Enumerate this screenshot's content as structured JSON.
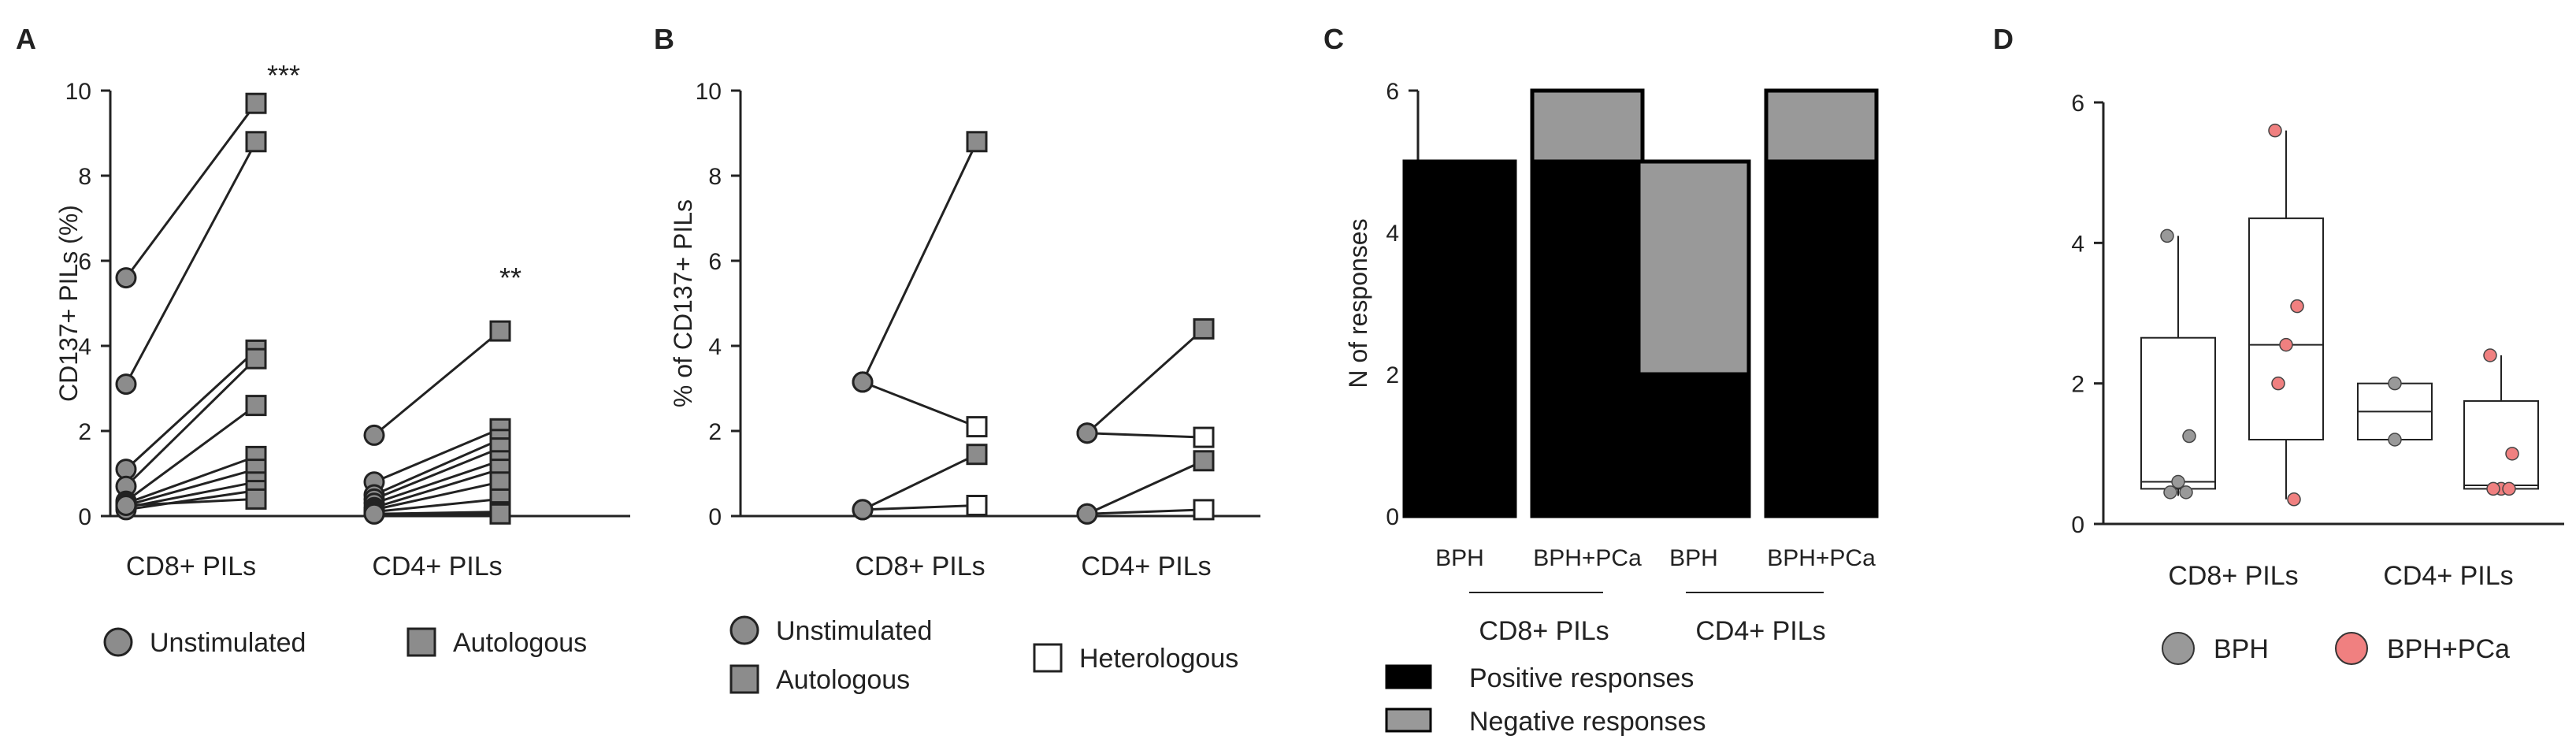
{
  "chart_data": [
    {
      "panel": "A",
      "type": "paired-dot",
      "ylabel": "CD137+ PILs (%)",
      "ylim": [
        0,
        10
      ],
      "yticks": [
        "0",
        "2",
        "4",
        "6",
        "8",
        "10"
      ],
      "categories": [
        "CD8+ PILs",
        "CD4+ PILs"
      ],
      "significance": [
        "***",
        "**"
      ],
      "legend": [
        "Unstimulated",
        "Autologous"
      ],
      "pairs": [
        {
          "category": "CD8+ PILs",
          "values": [
            [
              5.6,
              9.7
            ],
            [
              3.1,
              8.8
            ],
            [
              1.1,
              3.9
            ],
            [
              0.7,
              3.7
            ],
            [
              0.35,
              2.6
            ],
            [
              0.3,
              1.4
            ],
            [
              0.25,
              1.1
            ],
            [
              0.2,
              0.8
            ],
            [
              0.15,
              0.6
            ],
            [
              0.25,
              0.4
            ]
          ]
        },
        {
          "category": "CD4+ PILs",
          "values": [
            [
              1.9,
              4.35
            ],
            [
              0.8,
              2.05
            ],
            [
              0.5,
              1.8
            ],
            [
              0.4,
              1.6
            ],
            [
              0.3,
              1.3
            ],
            [
              0.2,
              1.1
            ],
            [
              0.15,
              0.8
            ],
            [
              0.1,
              0.4
            ],
            [
              0.05,
              0.1
            ],
            [
              0.05,
              0.05
            ]
          ]
        }
      ]
    },
    {
      "panel": "B",
      "type": "paired-dot",
      "ylabel": "% of CD137+ PILs",
      "ylim": [
        0,
        10
      ],
      "yticks": [
        "0",
        "2",
        "4",
        "6",
        "8",
        "10"
      ],
      "categories": [
        "CD8+ PILs",
        "CD4+ PILs"
      ],
      "legend": [
        "Unstimulated",
        "Autologous",
        "Heterologous"
      ],
      "pairs": [
        {
          "category": "CD8+ PILs",
          "from": 3.15,
          "to": 8.8,
          "kind": "Autologous"
        },
        {
          "category": "CD8+ PILs",
          "from": 3.15,
          "to": 2.1,
          "kind": "Heterologous"
        },
        {
          "category": "CD8+ PILs",
          "from": 0.15,
          "to": 1.45,
          "kind": "Autologous"
        },
        {
          "category": "CD8+ PILs",
          "from": 0.15,
          "to": 0.25,
          "kind": "Heterologous"
        },
        {
          "category": "CD4+ PILs",
          "from": 1.95,
          "to": 4.4,
          "kind": "Autologous"
        },
        {
          "category": "CD4+ PILs",
          "from": 1.95,
          "to": 1.85,
          "kind": "Heterologous"
        },
        {
          "category": "CD4+ PILs",
          "from": 0.05,
          "to": 1.3,
          "kind": "Autologous"
        },
        {
          "category": "CD4+ PILs",
          "from": 0.05,
          "to": 0.15,
          "kind": "Heterologous"
        }
      ]
    },
    {
      "panel": "C",
      "type": "stacked-bar",
      "ylabel": "N of responses",
      "ylim": [
        0,
        6
      ],
      "yticks": [
        "0",
        "2",
        "4",
        "6"
      ],
      "categories": [
        "BPH",
        "BPH+PCa",
        "BPH",
        "BPH+PCa"
      ],
      "groups": [
        "CD8+ PILs",
        "CD4+ PILs"
      ],
      "series": [
        {
          "name": "Positive responses",
          "values": [
            5,
            5,
            2,
            5
          ],
          "color": "#000000"
        },
        {
          "name": "Negative responses",
          "values": [
            0,
            1,
            3,
            1
          ],
          "color": "#999999"
        }
      ]
    },
    {
      "panel": "D",
      "type": "box",
      "ylim": [
        0,
        6
      ],
      "yticks": [
        "0",
        "2",
        "4",
        "6"
      ],
      "categories": [
        "CD8+ PILs",
        "CD4+ PILs"
      ],
      "legend": [
        "BPH",
        "BPH+PCa"
      ],
      "colors": {
        "BPH": "#999999",
        "BPH+PCa": "#f08080"
      },
      "boxes": [
        {
          "category": "CD8+ PILs",
          "group": "BPH",
          "min": 0.4,
          "q1": 0.5,
          "median": 0.6,
          "q3": 2.65,
          "max": 4.1,
          "points": [
            4.1,
            1.25,
            0.6,
            0.45,
            0.45
          ]
        },
        {
          "category": "CD8+ PILs",
          "group": "BPH+PCa",
          "min": 0.35,
          "q1": 1.2,
          "median": 2.55,
          "q3": 4.35,
          "max": 5.6,
          "points": [
            5.6,
            3.1,
            2.55,
            2.0,
            0.35
          ]
        },
        {
          "category": "CD4+ PILs",
          "group": "BPH",
          "min": 1.2,
          "q1": 1.2,
          "median": 1.6,
          "q3": 2.0,
          "max": 2.0,
          "points": [
            2.0,
            1.2
          ]
        },
        {
          "category": "CD4+ PILs",
          "group": "BPH+PCa",
          "min": 0.45,
          "q1": 0.5,
          "median": 0.55,
          "q3": 1.75,
          "max": 2.4,
          "points": [
            2.4,
            1.0,
            0.5,
            0.5,
            0.5
          ]
        }
      ]
    }
  ]
}
